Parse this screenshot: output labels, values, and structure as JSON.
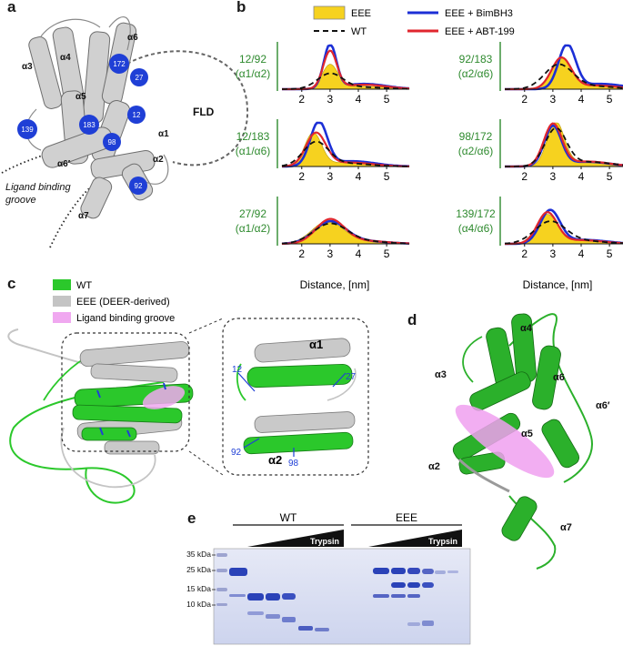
{
  "panels": {
    "a": "a",
    "b": "b",
    "c": "c",
    "d": "d",
    "e": "e"
  },
  "panel_a": {
    "helix_labels": [
      "α3",
      "α4",
      "α6",
      "α5",
      "α1",
      "α2",
      "α6′",
      "α7"
    ],
    "residues": [
      "172",
      "27",
      "139",
      "183",
      "12",
      "98",
      "92"
    ],
    "fld_label": "FLD",
    "groove_label": [
      "Ligand binding",
      "groove"
    ],
    "colors": {
      "residue": "#1f3fd6",
      "helix": "#c9c9c9"
    }
  },
  "panel_b": {
    "legend": {
      "eee": "EEE",
      "wt": "WT",
      "bimbh3": "EEE + BimBH3",
      "abt199": "EEE + ABT-199"
    },
    "xlabel": "Distance, [nm]",
    "colors": {
      "eee": "#f6d21f",
      "wt": "#111111",
      "bimbh3": "#1c2fd6",
      "abt199": "#e0262e",
      "pair": "#2e8a2e"
    }
  },
  "chart_data": {
    "type": "area",
    "xlabel": "Distance, [nm]",
    "x_ticks": [
      2,
      3,
      4,
      5
    ],
    "xlim": [
      1.3,
      5.8
    ],
    "legend": [
      "EEE",
      "WT",
      "EEE + BimBH3",
      "EEE + ABT-199"
    ],
    "plots": [
      {
        "pair": "12/92",
        "helices": "(α1/α2)",
        "peaks": {
          "eee": [
            3.0,
            0.55,
            0.28
          ],
          "wt": [
            3.0,
            0.35,
            0.45
          ],
          "bimbh3": [
            3.0,
            1.0,
            0.22
          ],
          "abt199": [
            3.0,
            0.85,
            0.24
          ]
        }
      },
      {
        "pair": "92/183",
        "helices": "(α2/α6)",
        "peaks": {
          "eee": [
            3.3,
            0.7,
            0.35
          ],
          "wt": [
            3.2,
            0.55,
            0.5
          ],
          "bimbh3": [
            3.5,
            1.0,
            0.3
          ],
          "abt199": [
            3.3,
            0.7,
            0.35
          ]
        }
      },
      {
        "pair": "12/183",
        "helices": "(α1/α6)",
        "peaks": {
          "eee": [
            2.4,
            0.75,
            0.3
          ],
          "wt": [
            2.5,
            0.55,
            0.45
          ],
          "bimbh3": [
            2.6,
            1.0,
            0.3
          ],
          "abt199": [
            2.5,
            0.75,
            0.35
          ]
        }
      },
      {
        "pair": "98/172",
        "helices": "(α2/α6)",
        "peaks": {
          "eee": [
            3.1,
            1.0,
            0.3
          ],
          "wt": [
            3.1,
            0.85,
            0.38
          ],
          "bimbh3": [
            3.0,
            0.9,
            0.3
          ],
          "abt199": [
            3.0,
            0.95,
            0.32
          ]
        }
      },
      {
        "pair": "27/92",
        "helices": "(α1/α2)",
        "peaks": {
          "eee": [
            2.9,
            0.5,
            0.55
          ],
          "wt": [
            3.0,
            0.45,
            0.6
          ],
          "bimbh3": [
            3.0,
            0.5,
            0.55
          ],
          "abt199": [
            3.0,
            0.55,
            0.5
          ]
        }
      },
      {
        "pair": "139/172",
        "helices": "(α4/α6)",
        "peaks": {
          "eee": [
            2.8,
            0.65,
            0.38
          ],
          "wt": [
            2.9,
            0.5,
            0.55
          ],
          "bimbh3": [
            2.9,
            0.75,
            0.35
          ],
          "abt199": [
            2.8,
            0.7,
            0.35
          ]
        }
      }
    ]
  },
  "panel_c": {
    "legend": {
      "wt": "WT",
      "eee": "EEE (DEER-derived)",
      "groove": "Ligand binding groove"
    },
    "inset_labels": {
      "a1": "α1",
      "a2": "α2",
      "r12": "12",
      "r27": "27",
      "r92": "92",
      "r98": "98"
    },
    "colors": {
      "wt": "#2bc82b",
      "eee": "#c4c4c4",
      "groove": "#f0a8f0",
      "residue": "#1f3fd6"
    }
  },
  "panel_d": {
    "helix_labels": [
      "α4",
      "α3",
      "α6",
      "α6′",
      "α5",
      "α2",
      "α7"
    ],
    "colors": {
      "helix": "#2bb02b",
      "groove": "#f0a0f0"
    }
  },
  "panel_e": {
    "groups": [
      "WT",
      "EEE"
    ],
    "protease": "Trypsin",
    "markers": [
      "35 kDa",
      "25 kDa",
      "15 kDa",
      "10 kDa"
    ],
    "colors": {
      "gel": "#d6dcf0",
      "band": "#2a42b8"
    }
  }
}
